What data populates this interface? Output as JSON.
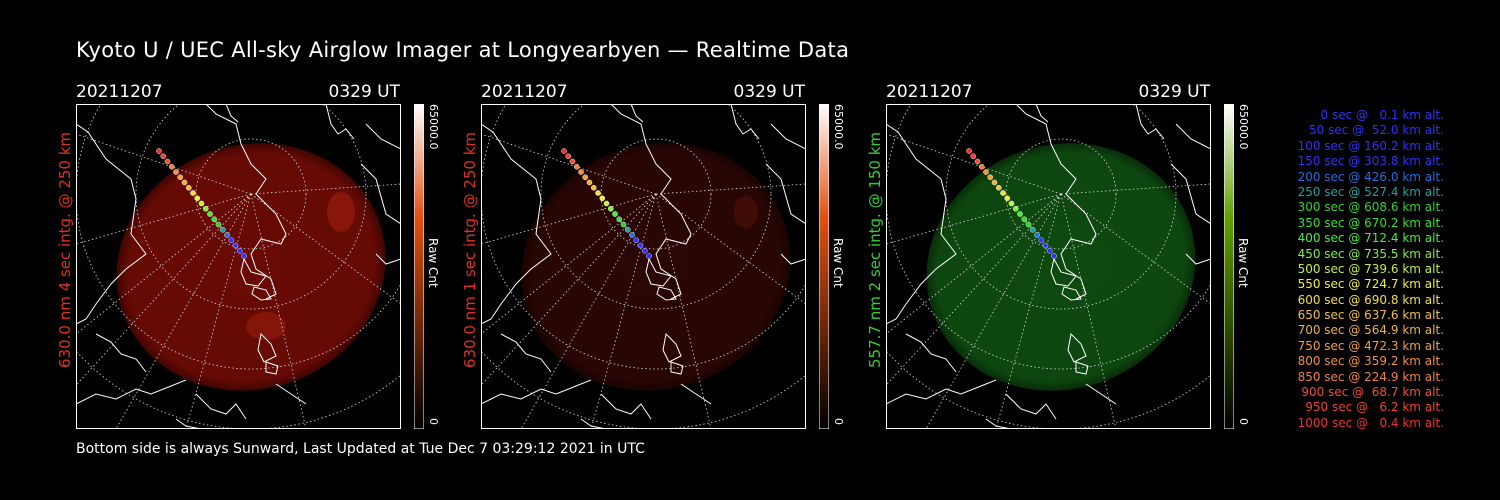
{
  "title": "Kyoto U / UEC All-sky Airglow Imager at Longyearbyen — Realtime Data",
  "footer": "Bottom side is always Sunward, Last Updated at Tue Dec  7 03:29:12 2021 in UTC",
  "panels": [
    {
      "date": "20211207",
      "time": "0329 UT",
      "label": "630.0 nm 4 sec intg. @ 250 km",
      "label_color": "#e03020",
      "colorbar_max": "65000.0",
      "colorbar_min": "0",
      "colorbar_unit": "Raw Cnt",
      "colorbar_top_color": "#ffffff",
      "colorbar_mid_color": "#e05010",
      "image_color": "#6a0a04"
    },
    {
      "date": "20211207",
      "time": "0329 UT",
      "label": "630.0 nm 1 sec intg. @ 250 km",
      "label_color": "#e03020",
      "colorbar_max": "65000.0",
      "colorbar_min": "0",
      "colorbar_unit": "Raw Cnt",
      "colorbar_top_color": "#ffffff",
      "colorbar_mid_color": "#e05010",
      "image_color": "#2a0604"
    },
    {
      "date": "20211207",
      "time": "0329 UT",
      "label": "557.7 nm 2 sec intg. @ 150 km",
      "label_color": "#30d030",
      "colorbar_max": "65000.0",
      "colorbar_min": "0",
      "colorbar_unit": "Raw Cnt",
      "colorbar_top_color": "#ffffff",
      "colorbar_mid_color": "#60a000",
      "image_color": "#0e4a10"
    }
  ],
  "legend": [
    {
      "text": "0 sec @   0.1 km alt.",
      "color": "#3030ff"
    },
    {
      "text": "50 sec @  52.0 km alt.",
      "color": "#3030ff"
    },
    {
      "text": "100 sec @ 160.2 km alt.",
      "color": "#3030ff"
    },
    {
      "text": "150 sec @ 303.8 km alt.",
      "color": "#3030ff"
    },
    {
      "text": "200 sec @ 426.0 km alt.",
      "color": "#2070e0"
    },
    {
      "text": "250 sec @ 527.4 km alt.",
      "color": "#20a0a0"
    },
    {
      "text": "300 sec @ 608.6 km alt.",
      "color": "#30d030"
    },
    {
      "text": "350 sec @ 670.2 km alt.",
      "color": "#30e030"
    },
    {
      "text": "400 sec @ 712.4 km alt.",
      "color": "#40f040"
    },
    {
      "text": "450 sec @ 735.5 km alt.",
      "color": "#80f040"
    },
    {
      "text": "500 sec @ 739.6 km alt.",
      "color": "#c0f040"
    },
    {
      "text": "550 sec @ 724.7 km alt.",
      "color": "#f0f040"
    },
    {
      "text": "600 sec @ 690.8 km alt.",
      "color": "#f0e040"
    },
    {
      "text": "650 sec @ 637.6 km alt.",
      "color": "#f0c040"
    },
    {
      "text": "700 sec @ 564.9 km alt.",
      "color": "#f0b040"
    },
    {
      "text": "750 sec @ 472.3 km alt.",
      "color": "#f0a040"
    },
    {
      "text": "800 sec @ 359.2 km alt.",
      "color": "#f09040"
    },
    {
      "text": "850 sec @ 224.9 km alt.",
      "color": "#f08040"
    },
    {
      "text": "900 sec @  68.7 km alt.",
      "color": "#f05030"
    },
    {
      "text": "950 sec @   6.2 km alt.",
      "color": "#f04030"
    },
    {
      "text": "1000 sec @   0.4 km alt.",
      "color": "#f03030"
    }
  ]
}
